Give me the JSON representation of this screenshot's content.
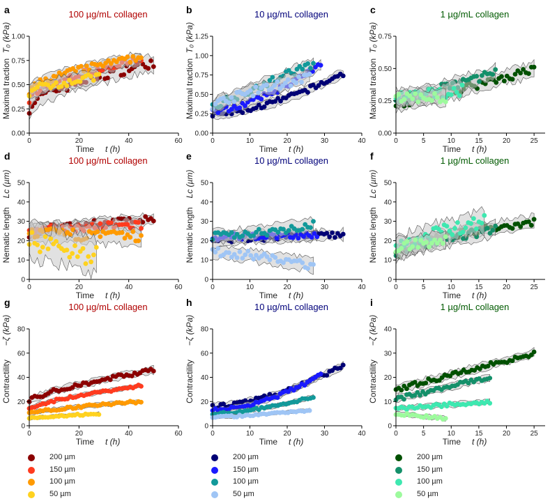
{
  "chart_data": [
    {
      "panel": "a",
      "title": "100 µg/mL collagen",
      "title_color": "#b00000",
      "ylabel": "Maximal traction",
      "ylabel_sym": "T₀ (kPa)",
      "xlabel": "Time",
      "xlabel_sym": "t (h)",
      "xlim": [
        0,
        60
      ],
      "ylim": [
        0,
        1
      ],
      "xticks": [
        0,
        20,
        40,
        60
      ],
      "xtick_labels": [
        "0",
        "20",
        "40",
        "60"
      ],
      "yticks": [
        0,
        0.25,
        0.5,
        0.75,
        1
      ],
      "ytick_labels": [
        "0.00",
        "0.25",
        "0.50",
        "0.75",
        "1.00"
      ],
      "series": [
        {
          "color": "#8b0000",
          "t_end": 50,
          "start": 0.26,
          "end": 0.73,
          "curve": 0.6,
          "spread": 0.08
        },
        {
          "color": "#ff3b1f",
          "t_end": 45,
          "start": 0.3,
          "end": 0.76,
          "curve": 0.5,
          "spread": 0.05
        },
        {
          "color": "#ff9a00",
          "t_end": 45,
          "start": 0.4,
          "end": 0.78,
          "curve": 0.5,
          "spread": 0.05
        },
        {
          "color": "#ffd21f",
          "t_end": 28,
          "start": 0.42,
          "end": 0.58,
          "curve": 0.6,
          "spread": 0.06
        }
      ]
    },
    {
      "panel": "b",
      "title": "10 µg/mL collagen",
      "title_color": "#00007a",
      "ylabel": "Maximal traction",
      "ylabel_sym": "T₀ (kPa)",
      "xlabel": "Time",
      "xlabel_sym": "t (h)",
      "xlim": [
        0,
        40
      ],
      "ylim": [
        0,
        1.25
      ],
      "xticks": [
        0,
        10,
        20,
        30,
        40
      ],
      "xtick_labels": [
        "0",
        "10",
        "20",
        "30",
        "40"
      ],
      "yticks": [
        0,
        0.25,
        0.5,
        0.75,
        1,
        1.25
      ],
      "ytick_labels": [
        "0.00",
        "0.25",
        "0.50",
        "0.75",
        "1.00",
        "1.25"
      ],
      "series": [
        {
          "color": "#000075",
          "t_end": 35,
          "start": 0.24,
          "end": 0.77,
          "curve": 1.6,
          "spread": 0.05
        },
        {
          "color": "#1a1aff",
          "t_end": 29,
          "start": 0.28,
          "end": 0.88,
          "curve": 1.5,
          "spread": 0.05
        },
        {
          "color": "#12999a",
          "t_end": 27,
          "start": 0.35,
          "end": 0.9,
          "curve": 1.0,
          "spread": 0.07
        },
        {
          "color": "#9fc5f5",
          "t_end": 26,
          "start": 0.35,
          "end": 0.72,
          "curve": 0.8,
          "spread": 0.08
        }
      ]
    },
    {
      "panel": "c",
      "title": "1 µg/mL collagen",
      "title_color": "#005a00",
      "ylabel": "Maximal traction",
      "ylabel_sym": "T₀ (kPa)",
      "xlabel": "Time",
      "xlabel_sym": "t (h)",
      "xlim": [
        0,
        27
      ],
      "ylim": [
        0,
        0.75
      ],
      "xticks": [
        0,
        5,
        10,
        15,
        20,
        25
      ],
      "xtick_labels": [
        "0",
        "5",
        "10",
        "15",
        "20",
        "25"
      ],
      "yticks": [
        0,
        0.25,
        0.5,
        0.75
      ],
      "ytick_labels": [
        "0.00",
        "0.25",
        "0.50",
        "0.75"
      ],
      "series": [
        {
          "color": "#005000",
          "t_end": 25,
          "start": 0.22,
          "end": 0.49,
          "curve": 1.0,
          "spread": 0.05
        },
        {
          "color": "#14906a",
          "t_end": 18,
          "start": 0.24,
          "end": 0.47,
          "curve": 1.0,
          "spread": 0.05
        },
        {
          "color": "#3ee8b0",
          "t_end": 12,
          "start": 0.27,
          "end": 0.33,
          "curve": 1.0,
          "spread": 0.06
        },
        {
          "color": "#9dfa9d",
          "t_end": 9,
          "start": 0.28,
          "end": 0.27,
          "curve": 1.0,
          "spread": 0.05
        }
      ]
    },
    {
      "panel": "d",
      "title": "100 µg/mL collagen",
      "title_color": "#b00000",
      "ylabel": "Nematic length",
      "ylabel_sym": "Lᴄ (µm)",
      "xlabel": "Time",
      "xlabel_sym": "t (h)",
      "xlim": [
        0,
        60
      ],
      "ylim": [
        0,
        50
      ],
      "xticks": [
        0,
        20,
        40,
        60
      ],
      "xtick_labels": [
        "0",
        "20",
        "40",
        "60"
      ],
      "yticks": [
        0,
        10,
        20,
        30,
        40,
        50
      ],
      "ytick_labels": [
        "0",
        "10",
        "20",
        "30",
        "40",
        "50"
      ],
      "series": [
        {
          "color": "#8b0000",
          "t_end": 50,
          "start": 22,
          "end": 31,
          "curve": 0.4,
          "spread": 2.5
        },
        {
          "color": "#ff3b1f",
          "t_end": 45,
          "start": 24,
          "end": 28,
          "curve": 0.5,
          "spread": 3
        },
        {
          "color": "#ff9a00",
          "t_end": 45,
          "start": 24,
          "end": 22,
          "curve": 0.8,
          "spread": 4
        },
        {
          "color": "#ffd21f",
          "t_end": 27,
          "start": 20,
          "end": 12,
          "curve": 1.0,
          "spread": 8
        }
      ]
    },
    {
      "panel": "e",
      "title": "10 µg/mL collagen",
      "title_color": "#00007a",
      "ylabel": "Nematic length",
      "ylabel_sym": "Lᴄ (µm)",
      "xlabel": "Time",
      "xlabel_sym": "t (h)",
      "xlim": [
        0,
        40
      ],
      "ylim": [
        0,
        50
      ],
      "xticks": [
        0,
        10,
        20,
        30,
        40
      ],
      "xtick_labels": [
        "0",
        "10",
        "20",
        "30",
        "40"
      ],
      "yticks": [
        0,
        10,
        20,
        30,
        40,
        50
      ],
      "ytick_labels": [
        "0",
        "10",
        "20",
        "30",
        "40",
        "50"
      ],
      "series": [
        {
          "color": "#000075",
          "t_end": 35,
          "start": 19,
          "end": 23,
          "curve": 0.4,
          "spread": 2.5
        },
        {
          "color": "#1a1aff",
          "t_end": 28,
          "start": 21,
          "end": 23,
          "curve": 0.4,
          "spread": 2.5
        },
        {
          "color": "#12999a",
          "t_end": 27,
          "start": 22,
          "end": 28,
          "curve": 1.2,
          "spread": 3
        },
        {
          "color": "#9fc5f5",
          "t_end": 27,
          "start": 14,
          "end": 7,
          "curve": 1.5,
          "spread": 3
        }
      ]
    },
    {
      "panel": "f",
      "title": "1 µg/mL collagen",
      "title_color": "#005a00",
      "ylabel": "Nematic length",
      "ylabel_sym": "Lᴄ (µm)",
      "xlabel": "Time",
      "xlabel_sym": "t (h)",
      "xlim": [
        0,
        27
      ],
      "ylim": [
        0,
        50
      ],
      "xticks": [
        0,
        5,
        10,
        15,
        20,
        25
      ],
      "xtick_labels": [
        "0",
        "5",
        "10",
        "15",
        "20",
        "25"
      ],
      "yticks": [
        0,
        10,
        20,
        30,
        40,
        50
      ],
      "ytick_labels": [
        "0",
        "10",
        "20",
        "30",
        "40",
        "50"
      ],
      "series": [
        {
          "color": "#005000",
          "t_end": 25,
          "start": 12,
          "end": 30,
          "curve": 0.6,
          "spread": 3
        },
        {
          "color": "#14906a",
          "t_end": 18,
          "start": 13,
          "end": 26,
          "curve": 0.6,
          "spread": 4
        },
        {
          "color": "#3ee8b0",
          "t_end": 16,
          "start": 15,
          "end": 30,
          "curve": 0.7,
          "spread": 5
        },
        {
          "color": "#9dfa9d",
          "t_end": 9,
          "start": 17,
          "end": 20,
          "curve": 1.0,
          "spread": 4
        }
      ]
    },
    {
      "panel": "g",
      "title": "100 µg/mL collagen",
      "title_color": "#b00000",
      "ylabel": "Contractility",
      "ylabel_sym": "−ζ (kPa)",
      "xlabel": "Time",
      "xlabel_sym": "t (h)",
      "xlim": [
        0,
        60
      ],
      "ylim": [
        0,
        80
      ],
      "xticks": [
        0,
        20,
        40,
        60
      ],
      "xtick_labels": [
        "0",
        "20",
        "40",
        "60"
      ],
      "yticks": [
        0,
        20,
        40,
        60,
        80
      ],
      "ytick_labels": [
        "0",
        "20",
        "40",
        "60",
        "80"
      ],
      "series": [
        {
          "color": "#8b0000",
          "t_end": 50,
          "start": 20,
          "end": 46,
          "curve": 0.7,
          "spread": 2.5
        },
        {
          "color": "#ff3b1f",
          "t_end": 45,
          "start": 14,
          "end": 33,
          "curve": 0.7,
          "spread": 1.5
        },
        {
          "color": "#ff9a00",
          "t_end": 45,
          "start": 10,
          "end": 20,
          "curve": 0.7,
          "spread": 1.5
        },
        {
          "color": "#ffd21f",
          "t_end": 28,
          "start": 6,
          "end": 10,
          "curve": 0.8,
          "spread": 1.2
        }
      ]
    },
    {
      "panel": "h",
      "title": "10 µg/mL collagen",
      "title_color": "#00007a",
      "ylabel": "Contractility",
      "ylabel_sym": "−ζ (kPa)",
      "xlabel": "Time",
      "xlabel_sym": "t (h)",
      "xlim": [
        0,
        40
      ],
      "ylim": [
        0,
        80
      ],
      "xticks": [
        0,
        10,
        20,
        30,
        40
      ],
      "xtick_labels": [
        "0",
        "10",
        "20",
        "30",
        "40"
      ],
      "yticks": [
        0,
        20,
        40,
        60,
        80
      ],
      "ytick_labels": [
        "0",
        "20",
        "40",
        "60",
        "80"
      ],
      "series": [
        {
          "color": "#000075",
          "t_end": 35,
          "start": 16,
          "end": 50,
          "curve": 1.7,
          "spread": 2.5
        },
        {
          "color": "#1a1aff",
          "t_end": 29,
          "start": 13,
          "end": 42,
          "curve": 1.8,
          "spread": 2
        },
        {
          "color": "#12999a",
          "t_end": 27,
          "start": 10,
          "end": 24,
          "curve": 1.6,
          "spread": 1.5
        },
        {
          "color": "#9fc5f5",
          "t_end": 26,
          "start": 7,
          "end": 13,
          "curve": 1.3,
          "spread": 1.2
        }
      ]
    },
    {
      "panel": "i",
      "title": "1 µg/mL collagen",
      "title_color": "#005a00",
      "ylabel": "Contractility",
      "ylabel_sym": "−ζ (kPa)",
      "xlabel": "Time",
      "xlabel_sym": "t (h)",
      "xlim": [
        0,
        27
      ],
      "ylim": [
        0,
        40
      ],
      "xticks": [
        0,
        5,
        10,
        15,
        20,
        25
      ],
      "xtick_labels": [
        "0",
        "5",
        "10",
        "15",
        "20",
        "25"
      ],
      "yticks": [
        0,
        10,
        20,
        30,
        40
      ],
      "ytick_labels": [
        "0",
        "10",
        "20",
        "30",
        "40"
      ],
      "series": [
        {
          "color": "#005000",
          "t_end": 25,
          "start": 15,
          "end": 30,
          "curve": 1.0,
          "spread": 1.5
        },
        {
          "color": "#14906a",
          "t_end": 17,
          "start": 11,
          "end": 20,
          "curve": 1.0,
          "spread": 1.2
        },
        {
          "color": "#3ee8b0",
          "t_end": 17,
          "start": 7,
          "end": 10,
          "curve": 1.0,
          "spread": 1.0
        },
        {
          "color": "#9dfa9d",
          "t_end": 9,
          "start": 5,
          "end": 3,
          "curve": 1.0,
          "spread": 0.8
        }
      ]
    }
  ],
  "legends": [
    {
      "items": [
        {
          "label": "200 µm",
          "color": "#8b0000"
        },
        {
          "label": "150 µm",
          "color": "#ff3b1f"
        },
        {
          "label": "100 µm",
          "color": "#ff9a00"
        },
        {
          "label": "50 µm",
          "color": "#ffd21f"
        }
      ]
    },
    {
      "items": [
        {
          "label": "200 µm",
          "color": "#000075"
        },
        {
          "label": "150 µm",
          "color": "#1a1aff"
        },
        {
          "label": "100 µm",
          "color": "#12999a"
        },
        {
          "label": "50 µm",
          "color": "#9fc5f5"
        }
      ]
    },
    {
      "items": [
        {
          "label": "200 µm",
          "color": "#005000"
        },
        {
          "label": "150 µm",
          "color": "#14906a"
        },
        {
          "label": "100 µm",
          "color": "#3ee8b0"
        },
        {
          "label": "50 µm",
          "color": "#9dfa9d"
        }
      ]
    }
  ]
}
